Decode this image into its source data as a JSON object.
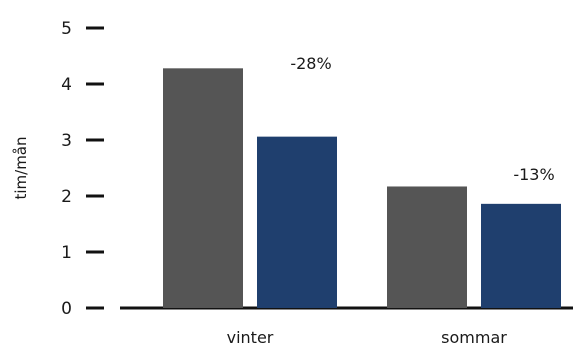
{
  "chart_data": {
    "type": "bar",
    "ylabel": "tim/mån",
    "xlabel": "",
    "categories": [
      "vinter",
      "sommar"
    ],
    "series": [
      {
        "values": [
          4.28,
          2.17
        ],
        "color": "#555555"
      },
      {
        "values": [
          3.06,
          1.86
        ],
        "color": "#1f3f6e"
      }
    ],
    "ylim": [
      0,
      5
    ],
    "yticks": [
      "0",
      "1",
      "2",
      "3",
      "4",
      "5"
    ],
    "annotations": [
      "-28%",
      "-13%"
    ],
    "grid": false,
    "legend": "none"
  }
}
